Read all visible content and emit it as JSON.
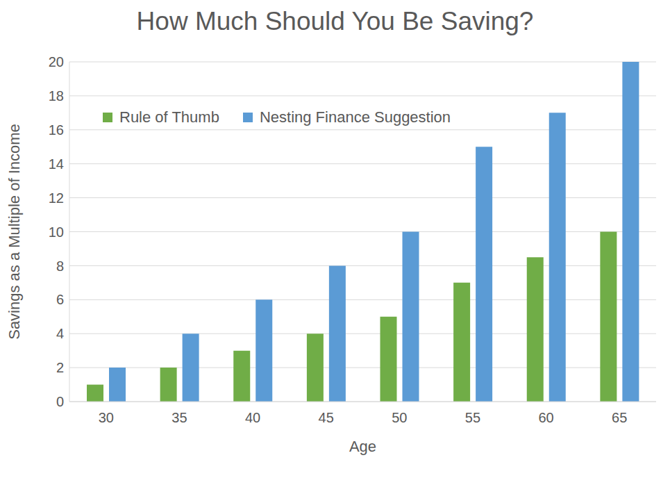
{
  "chart_data": {
    "type": "bar",
    "title": "How Much Should You Be Saving?",
    "x_label": "Age",
    "y_label": "Savings as a Multiple of Income",
    "categories": [
      30,
      35,
      40,
      45,
      50,
      55,
      60,
      65
    ],
    "series": [
      {
        "name": "Rule of Thumb",
        "color": "#70ad47",
        "values": [
          1,
          2,
          3,
          4,
          5,
          7,
          8.5,
          10
        ]
      },
      {
        "name": "Nesting Finance Suggestion",
        "color": "#5b9bd5",
        "values": [
          2,
          4,
          6,
          8,
          10,
          15,
          17,
          20
        ]
      }
    ],
    "ylim": [
      0,
      20
    ],
    "yticks": [
      0,
      2,
      4,
      6,
      8,
      10,
      12,
      14,
      16,
      18,
      20
    ],
    "grid": true,
    "legend": "top-left"
  }
}
